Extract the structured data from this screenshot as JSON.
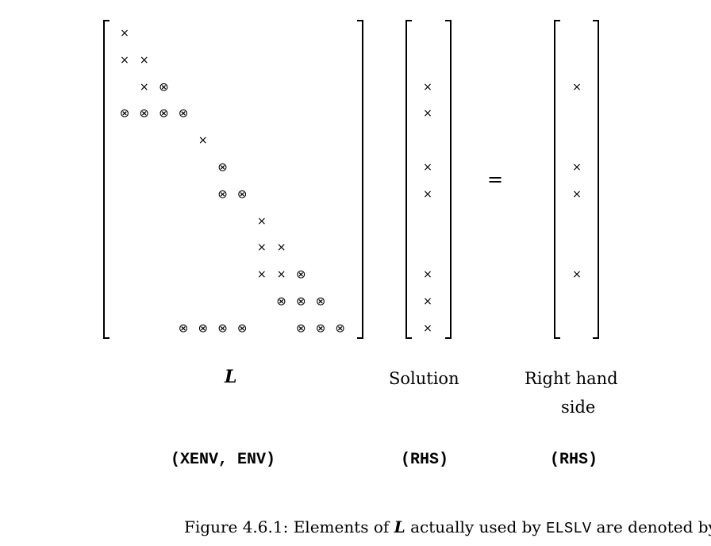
{
  "figure": {
    "symbols": {
      "present": "×",
      "used": "⊗",
      "equals": "="
    },
    "matrix_L": {
      "rows": [
        [
          "×"
        ],
        [
          "×",
          "×"
        ],
        [
          "",
          "×",
          "⊗"
        ],
        [
          "⊗",
          "⊗",
          "⊗",
          "⊗"
        ],
        [
          "",
          "",
          "",
          "",
          "×"
        ],
        [
          "",
          "",
          "",
          "",
          "",
          "⊗"
        ],
        [
          "",
          "",
          "",
          "",
          "",
          "⊗",
          "⊗"
        ],
        [
          "",
          "",
          "",
          "",
          "",
          "",
          "",
          "×"
        ],
        [
          "",
          "",
          "",
          "",
          "",
          "",
          "",
          "×",
          "×"
        ],
        [
          "",
          "",
          "",
          "",
          "",
          "",
          "",
          "×",
          "×",
          "⊗"
        ],
        [
          "",
          "",
          "",
          "",
          "",
          "",
          "",
          "",
          "⊗",
          "⊗",
          "⊗"
        ],
        [
          "",
          "",
          "",
          "⊗",
          "⊗",
          "⊗",
          "⊗",
          "",
          "",
          "⊗",
          "⊗",
          "⊗"
        ]
      ]
    },
    "solution_vector": [
      "",
      "",
      "×",
      "×",
      "",
      "×",
      "×",
      "",
      "",
      "×",
      "×",
      "×"
    ],
    "rhs_vector": [
      "",
      "",
      "×",
      "",
      "",
      "×",
      "×",
      "",
      "",
      "×",
      "",
      ""
    ],
    "labels": {
      "L": "L",
      "solution": "Solution",
      "rhs_line1": "Right hand",
      "rhs_line2": "side",
      "storage_L": "(XENV, ENV)",
      "storage_solution": "(RHS)",
      "storage_rhs": "(RHS)"
    },
    "caption": {
      "prefix": "Figure 4.6.1: Elements of ",
      "matrix": "L",
      "middle": " actually used by ",
      "routine": "ELSLV",
      "suffix": " are denoted by ",
      "symbol": "⊗",
      "end": "."
    }
  }
}
